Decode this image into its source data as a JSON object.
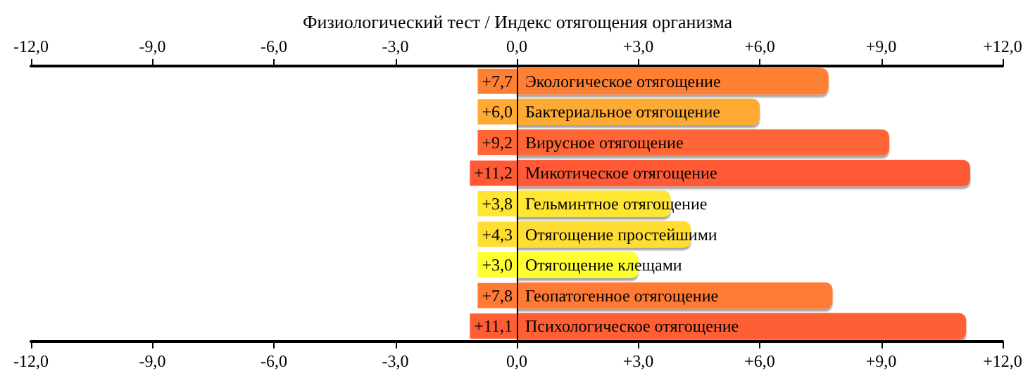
{
  "chart_data": {
    "type": "bar",
    "orientation": "horizontal",
    "title": "Физиологический тест / Индекс отягощения организма",
    "categories": [
      "Экологическое отягощение",
      "Бактериальное отягощение",
      "Вирусное отягощение",
      "Микотическое отягощение",
      "Гельминтное отягощение",
      "Отягощение простейшими",
      "Отягощение клещами",
      "Геопатогенное отягощение",
      "Психологическое отягощение"
    ],
    "values": [
      7.7,
      6.0,
      9.2,
      11.2,
      3.8,
      4.3,
      3.0,
      7.8,
      11.1
    ],
    "value_labels": [
      "+7,7",
      "+6,0",
      "+9,2",
      "+11,2",
      "+3,8",
      "+4,3",
      "+3,0",
      "+7,8",
      "+11,1"
    ],
    "colors": [
      "#ff7f35",
      "#ffaa33",
      "#ff6535",
      "#ff5a35",
      "#ffe633",
      "#ffdd33",
      "#ffff33",
      "#ff7a35",
      "#ff5e35"
    ],
    "xlim": [
      -12,
      12
    ],
    "xticks": [
      {
        "value": -12,
        "label": "-12,0"
      },
      {
        "value": -9,
        "label": "-9,0"
      },
      {
        "value": -6,
        "label": "-6,0"
      },
      {
        "value": -3,
        "label": "-3,0"
      },
      {
        "value": 0,
        "label": "0,0"
      },
      {
        "value": 3,
        "label": "+3,0"
      },
      {
        "value": 6,
        "label": "+6,0"
      },
      {
        "value": 9,
        "label": "+9,0"
      },
      {
        "value": 12,
        "label": "+12,0"
      }
    ],
    "x2lim": [
      -12,
      12
    ],
    "x2ticks": [
      {
        "value": -12,
        "label": "-12,0"
      },
      {
        "value": -9,
        "label": "-9,0"
      },
      {
        "value": -6,
        "label": "-6,0"
      },
      {
        "value": -3,
        "label": "-3,0"
      },
      {
        "value": 0,
        "label": "0,0"
      },
      {
        "value": 3,
        "label": "+3,0"
      },
      {
        "value": 6,
        "label": "+6,0"
      },
      {
        "value": 9,
        "label": "+9,0"
      },
      {
        "value": 12,
        "label": "+12,0"
      }
    ],
    "grid": false
  }
}
